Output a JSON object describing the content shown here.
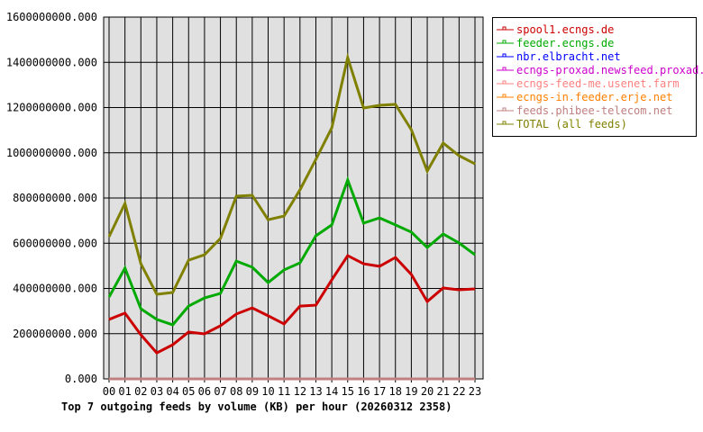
{
  "chart_data": {
    "type": "line",
    "title": "Top 7 outgoing feeds by volume (KB) per hour (20260312 2358)",
    "xlabel": "",
    "ylabel": "",
    "x": [
      "00",
      "01",
      "02",
      "03",
      "04",
      "05",
      "06",
      "07",
      "08",
      "09",
      "10",
      "11",
      "12",
      "13",
      "14",
      "15",
      "16",
      "17",
      "18",
      "19",
      "20",
      "21",
      "22",
      "23"
    ],
    "ylim": [
      0,
      1600000000
    ],
    "yticks": [
      "0.000",
      "200000000.000",
      "400000000.000",
      "600000000.000",
      "800000000.000",
      "1000000000.000",
      "1200000000.000",
      "1400000000.000",
      "1600000000.000"
    ],
    "grid": true,
    "legend_placement": "right",
    "plot_background": "#e0e0e0",
    "series": [
      {
        "name": "spool1.ecngs.de",
        "color": "#cc0000",
        "values": [
          263000000.0,
          291000000.0,
          195000000.0,
          115000000.0,
          151000000.0,
          207000000.0,
          199000000.0,
          235000000.0,
          287000000.0,
          314000000.0,
          279000000.0,
          243000000.0,
          322000000.0,
          326000000.0,
          438000000.0,
          545000000.0,
          509000000.0,
          498000000.0,
          537000000.0,
          462000000.0,
          342000000.0,
          402000000.0,
          394000000.0,
          398000000.0
        ]
      },
      {
        "name": "feeder.ecngs.de",
        "color": "#00aa00",
        "values": [
          362000000.0,
          490000000.0,
          310000000.0,
          263000000.0,
          239000000.0,
          322000000.0,
          358000000.0,
          378000000.0,
          521000000.0,
          494000000.0,
          426000000.0,
          482000000.0,
          513000000.0,
          633000000.0,
          681000000.0,
          880000000.0,
          689000000.0,
          712000000.0,
          681000000.0,
          649000000.0,
          581000000.0,
          641000000.0,
          601000000.0,
          549000000.0
        ]
      },
      {
        "name": "nbr.elbracht.net",
        "color": "#0000ff",
        "values": [
          0,
          0,
          0,
          0,
          0,
          0,
          0,
          0,
          0,
          0,
          0,
          0,
          0,
          0,
          0,
          0,
          0,
          0,
          0,
          0,
          0,
          0,
          0,
          0
        ]
      },
      {
        "name": "ecngs-proxad.newsfeed.proxad.net",
        "color": "#cc00cc",
        "values": [
          0,
          0,
          0,
          0,
          0,
          0,
          0,
          0,
          0,
          0,
          0,
          0,
          0,
          0,
          0,
          0,
          0,
          0,
          0,
          0,
          0,
          0,
          0,
          0
        ]
      },
      {
        "name": "ecngs-feed-me.usenet.farm",
        "color": "#ff8080",
        "values": [
          0,
          0,
          0,
          0,
          0,
          0,
          0,
          0,
          0,
          0,
          0,
          0,
          0,
          0,
          0,
          0,
          0,
          0,
          0,
          0,
          0,
          0,
          0,
          0
        ]
      },
      {
        "name": "ecngs-in.feeder.erje.net",
        "color": "#ff8000",
        "values": [
          0,
          0,
          0,
          0,
          0,
          0,
          0,
          0,
          0,
          0,
          0,
          0,
          0,
          0,
          0,
          0,
          0,
          0,
          0,
          0,
          0,
          0,
          0,
          0
        ]
      },
      {
        "name": "feeds.phibee-telecom.net",
        "color": "#c08080",
        "values": [
          0,
          0,
          0,
          0,
          0,
          0,
          0,
          0,
          0,
          0,
          0,
          0,
          0,
          0,
          0,
          0,
          0,
          0,
          0,
          0,
          0,
          0,
          0,
          0
        ]
      },
      {
        "name": "TOTAL (all feeds)",
        "color": "#808000",
        "values": [
          629000000.0,
          776000000.0,
          509000000.0,
          374000000.0,
          382000000.0,
          525000000.0,
          549000000.0,
          621000000.0,
          808000000.0,
          812000000.0,
          704000000.0,
          720000000.0,
          836000000.0,
          971000000.0,
          1110000000.0,
          1421000000.0,
          1198000000.0,
          1210000000.0,
          1214000000.0,
          1102000000.0,
          919000000.0,
          1043000000.0,
          987000000.0,
          951000000.0
        ]
      }
    ]
  }
}
